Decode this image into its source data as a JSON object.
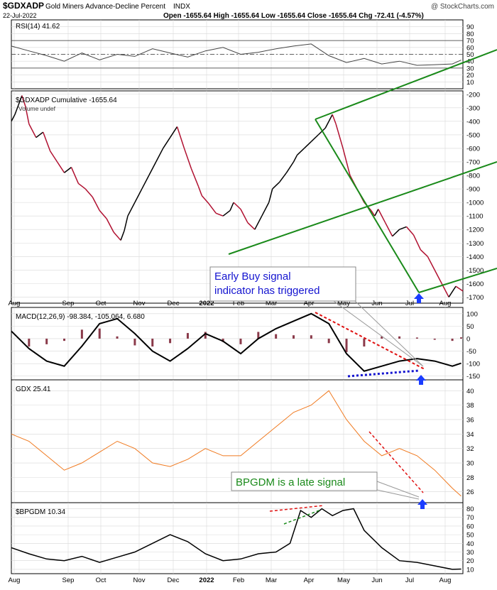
{
  "header": {
    "symbol": "$GDXADP",
    "name": "Gold Miners Advance-Decline Percent",
    "exchange": "INDX",
    "date": "22-Jul-2022",
    "ohlc_text": "Open -1655.64  High -1655.64  Low -1655.64  Close -1655.64  Chg -72.41 (-4.57%)",
    "watermark": "@ StockCharts.com"
  },
  "x_axis": {
    "labels": [
      "Aug",
      "Sep",
      "Oct",
      "Nov",
      "Dec",
      "2022",
      "Feb",
      "Mar",
      "Apr",
      "May",
      "Jun",
      "Jul",
      "Aug"
    ],
    "label_x": [
      8,
      84,
      130,
      184,
      232,
      279,
      324,
      370,
      423,
      472,
      519,
      565,
      615
    ]
  },
  "colors": {
    "up": "#000000",
    "down": "#b01030",
    "trend": "#1a8a1a",
    "rsi_line": "#444444",
    "macd_hist": "#8a3a4a",
    "gdx": "#f07a20",
    "annotation_blue": "#1414d0",
    "arrow_blue": "#1a3cff",
    "red_dash": "#e01010",
    "grid": "#d8d8d8"
  },
  "chart_data": [
    {
      "type": "line",
      "name": "rsi",
      "title": "RSI(14) 41.62",
      "ylim": [
        0,
        100
      ],
      "y_ticks": [
        10,
        20,
        30,
        40,
        50,
        60,
        70,
        80,
        90
      ],
      "reference_lines": [
        30,
        50,
        70
      ],
      "x": [
        0,
        10,
        20,
        30,
        40,
        50,
        60,
        70,
        80,
        90,
        100,
        110,
        120,
        130,
        140,
        150,
        160,
        170,
        180,
        190,
        200,
        210,
        220,
        230,
        240,
        250,
        255
      ],
      "values": [
        62,
        55,
        48,
        40,
        52,
        42,
        50,
        47,
        58,
        52,
        46,
        55,
        60,
        50,
        53,
        58,
        62,
        65,
        48,
        38,
        44,
        36,
        40,
        34,
        35,
        36,
        41.62
      ]
    },
    {
      "type": "line",
      "name": "gdxadp",
      "title": "$GDXADP Cumulative -1655.64",
      "subtitle": "Volume undef",
      "ylim": [
        -1745,
        -175
      ],
      "y_ticks": [
        -200,
        -300,
        -400,
        -500,
        -600,
        -700,
        -800,
        -900,
        -1000,
        -1100,
        -1200,
        -1300,
        -1400,
        -1500,
        -1600,
        -1700
      ],
      "x": [
        0,
        2,
        4,
        6,
        8,
        10,
        14,
        18,
        22,
        26,
        30,
        34,
        38,
        42,
        46,
        48,
        50,
        54,
        58,
        62,
        64,
        66,
        70,
        74,
        78,
        82,
        86,
        90,
        94,
        98,
        102,
        106,
        108,
        112,
        116,
        120,
        124,
        126,
        130,
        134,
        138,
        142,
        146,
        148,
        152,
        156,
        160,
        162,
        166,
        170,
        174,
        178,
        180,
        182,
        184,
        188,
        192,
        196,
        200,
        204,
        206,
        208,
        212,
        216,
        220,
        224,
        228,
        232,
        236,
        240,
        244,
        248,
        252,
        256
      ],
      "values": [
        -400,
        -350,
        -280,
        -210,
        -290,
        -420,
        -520,
        -480,
        -620,
        -700,
        -780,
        -740,
        -860,
        -900,
        -960,
        -1010,
        -1060,
        -1120,
        -1220,
        -1280,
        -1210,
        -1100,
        -1000,
        -900,
        -800,
        -700,
        -600,
        -520,
        -440,
        -600,
        -750,
        -880,
        -950,
        -1010,
        -1080,
        -1100,
        -1060,
        -1000,
        -1050,
        -1150,
        -1200,
        -1100,
        -1000,
        -900,
        -850,
        -780,
        -700,
        -650,
        -600,
        -550,
        -500,
        -450,
        -400,
        -350,
        -420,
        -600,
        -800,
        -900,
        -1000,
        -1060,
        -1100,
        -1050,
        -1150,
        -1250,
        -1200,
        -1180,
        -1240,
        -1350,
        -1400,
        -1500,
        -1600,
        -1700,
        -1620,
        -1655.64
      ]
    },
    {
      "type": "line",
      "name": "macd",
      "title": "MACD(12,26,9) -98.384, -105.064, 6.680",
      "ylim": [
        -165,
        125
      ],
      "y_ticks": [
        100,
        50,
        0,
        -50,
        -100,
        -150
      ],
      "x": [
        0,
        10,
        20,
        30,
        40,
        50,
        60,
        70,
        80,
        90,
        100,
        110,
        120,
        130,
        140,
        150,
        160,
        170,
        180,
        190,
        200,
        210,
        220,
        230,
        240,
        250,
        255
      ],
      "values": [
        30,
        -40,
        -90,
        -110,
        -30,
        60,
        80,
        20,
        -50,
        -90,
        -40,
        20,
        -10,
        -60,
        0,
        40,
        70,
        100,
        60,
        -60,
        -130,
        -110,
        -90,
        -80,
        -90,
        -110,
        -98.384
      ]
    },
    {
      "type": "line",
      "name": "gdx",
      "title": "GDX 25.41",
      "ylim": [
        24.5,
        41.5
      ],
      "y_ticks": [
        26,
        28,
        30,
        32,
        34,
        36,
        38,
        40
      ],
      "x": [
        0,
        10,
        20,
        30,
        40,
        50,
        60,
        70,
        80,
        90,
        100,
        110,
        120,
        130,
        140,
        150,
        160,
        170,
        180,
        190,
        200,
        210,
        220,
        230,
        240,
        250,
        255
      ],
      "values": [
        34,
        33,
        31,
        29,
        30,
        31.5,
        33,
        32,
        30,
        29.5,
        30.5,
        32,
        31,
        31,
        33,
        35,
        37,
        38,
        40,
        36,
        33,
        31,
        32,
        31,
        29,
        26.5,
        25.41
      ]
    },
    {
      "type": "line",
      "name": "bpgdm",
      "title": "$BPGDM 10.34",
      "ylim": [
        5,
        87
      ],
      "y_ticks": [
        10,
        20,
        30,
        40,
        50,
        60,
        70,
        80
      ],
      "x": [
        0,
        10,
        20,
        30,
        40,
        50,
        60,
        70,
        80,
        90,
        100,
        110,
        120,
        130,
        140,
        150,
        158,
        164,
        170,
        176,
        182,
        188,
        194,
        200,
        210,
        220,
        230,
        240,
        250,
        255
      ],
      "values": [
        35,
        28,
        22,
        20,
        25,
        18,
        24,
        30,
        40,
        50,
        42,
        28,
        20,
        22,
        28,
        30,
        40,
        78,
        70,
        80,
        72,
        78,
        80,
        55,
        35,
        20,
        18,
        14,
        10,
        10.34
      ]
    }
  ],
  "annotations": {
    "early_buy_line1": "Early Buy signal",
    "early_buy_line2": "indicator has triggered",
    "bpgdm_late": "BPGDM is a late signal"
  }
}
